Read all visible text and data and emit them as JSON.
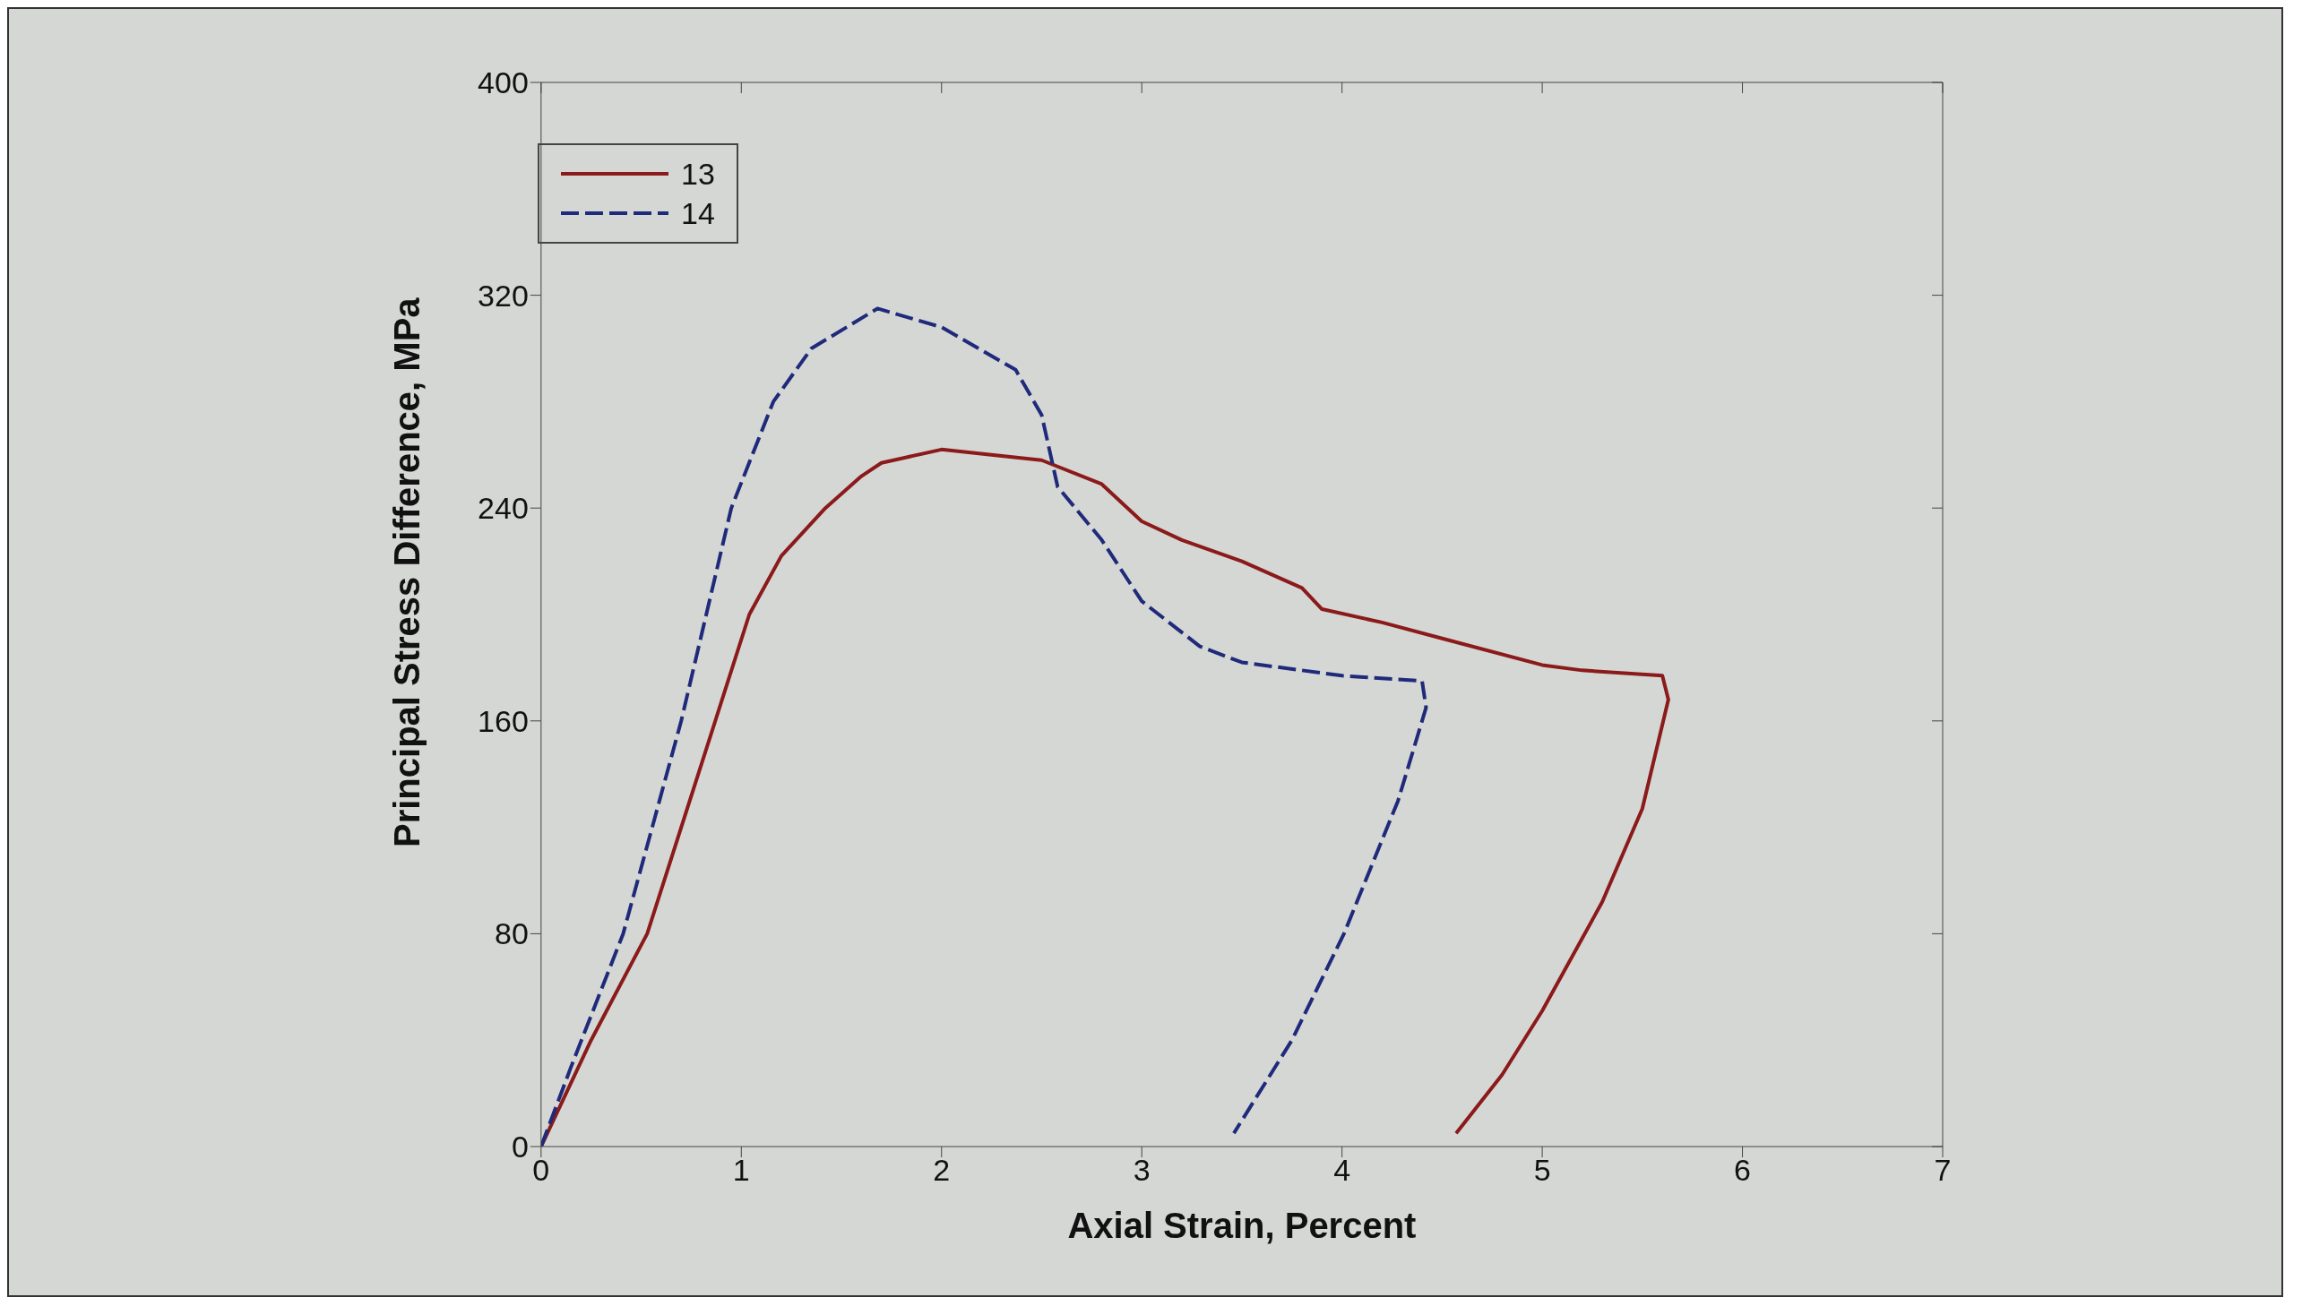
{
  "chart_data": {
    "type": "line",
    "xlabel": "Axial Strain, Percent",
    "ylabel": "Principal Stress Difference, MPa",
    "xlim": [
      0,
      7
    ],
    "xticks": [
      0,
      1,
      2,
      3,
      4,
      5,
      6,
      7
    ],
    "ylim": [
      0,
      400
    ],
    "yticks": [
      0,
      80,
      160,
      240,
      320,
      400
    ],
    "grid": false,
    "legend": "top left",
    "series": [
      {
        "name": "13",
        "color": "#8b1a1a",
        "line_style": "solid",
        "x": [
          0,
          0.25,
          0.53,
          0.87,
          1.04,
          1.2,
          1.42,
          1.6,
          1.7,
          2.0,
          2.5,
          2.8,
          3.0,
          3.2,
          3.5,
          3.8,
          3.9,
          4.2,
          4.5,
          5.0,
          5.2,
          5.6,
          5.63,
          5.5,
          5.3,
          5.0,
          4.8,
          4.57
        ],
        "values": [
          0,
          40,
          80,
          160,
          200,
          222,
          240,
          252,
          257,
          262,
          258,
          249,
          235,
          228,
          220,
          210,
          202,
          197,
          191,
          181,
          179,
          177,
          168,
          127,
          92,
          51,
          27,
          5
        ]
      },
      {
        "name": "14",
        "color": "#1f2a7a",
        "line_style": "dashed",
        "x": [
          0,
          0.15,
          0.41,
          0.7,
          0.95,
          1.16,
          1.35,
          1.68,
          2.0,
          2.37,
          2.5,
          2.58,
          2.8,
          3.0,
          3.29,
          3.5,
          4.0,
          4.4,
          4.42,
          4.28,
          4.01,
          3.75,
          3.46
        ],
        "values": [
          0,
          30,
          80,
          160,
          240,
          280,
          300,
          315,
          308,
          292,
          275,
          248,
          228,
          205,
          188,
          182,
          177,
          175,
          165,
          130,
          80,
          40,
          5
        ]
      }
    ]
  }
}
